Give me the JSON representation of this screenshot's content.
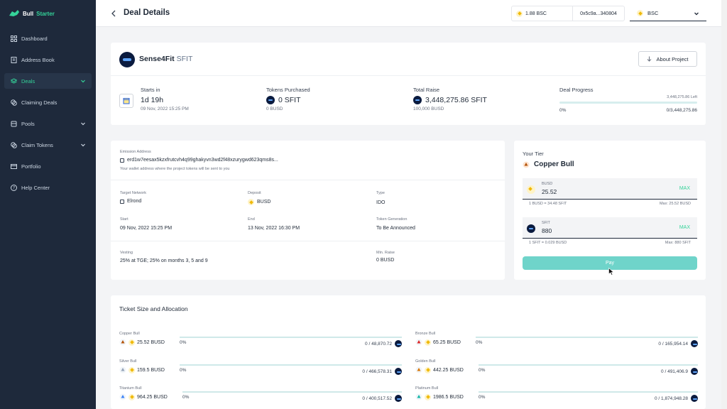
{
  "app": {
    "name_prefix": "Bull",
    "name_accent": "Starter"
  },
  "sidebar": {
    "items": [
      {
        "label": "Dashboard",
        "icon": "grid-icon"
      },
      {
        "label": "Address Book",
        "icon": "book-icon"
      },
      {
        "label": "Deals",
        "icon": "layers-icon",
        "active": true,
        "chevron": true
      },
      {
        "label": "Claiming Deals",
        "icon": "coins-icon"
      },
      {
        "label": "Pools",
        "icon": "cube-icon",
        "chevron": true
      },
      {
        "label": "Claim Tokens",
        "icon": "coins-icon",
        "chevron": true
      },
      {
        "label": "Portfolio",
        "icon": "wallet-icon"
      },
      {
        "label": "Help Center",
        "icon": "help-icon"
      }
    ]
  },
  "header": {
    "title": "Deal Details",
    "balance": "1.88 BSC",
    "address": "0x5c9a...340804",
    "network": "BSC"
  },
  "project": {
    "name": "Sense4Fit",
    "symbol": "SFIT",
    "about_label": "About Project",
    "starts_in_label": "Starts in",
    "starts_in_value": "1d 19h",
    "starts_in_date": "09 Nov, 2022 15:25 PM",
    "tokens_purchased_label": "Tokens Purchased",
    "tokens_purchased_value": "0 SFIT",
    "tokens_purchased_sub": "0 BUSD",
    "total_raise_label": "Total Raise",
    "total_raise_value": "3,448,275.86 SFIT",
    "total_raise_sub": "100,000 BUSD",
    "progress_label": "Deal Progress",
    "progress_left": "3,448,275.86 Left",
    "progress_pct": "0%",
    "progress_ratio": "0/3,448,275.86",
    "progress_fraction": 0
  },
  "info": {
    "emission_label": "Emission Address",
    "emission_value": "erd1w7eesax5kzxfrutcvh4q99ghakyvn3wd2f48xzurygwd623qms8s...",
    "emission_note": "Your wallet address where the project tokens will be sent to you",
    "target_network_label": "Target Network",
    "target_network_value": "Elrond",
    "deposit_label": "Deposit",
    "deposit_value": "BUSD",
    "type_label": "Type",
    "type_value": "IDO",
    "start_label": "Start",
    "start_value": "09 Nov, 2022 15:25 PM",
    "end_label": "End",
    "end_value": "13 Nov, 2022 16:30 PM",
    "token_gen_label": "Token Generation",
    "token_gen_value": "To Be Announced",
    "vesting_label": "Vesting",
    "vesting_value": "25% at TGE; 25% on months 3, 5 and 9",
    "min_raise_label": "Min. Raise",
    "min_raise_value": "0 BUSD"
  },
  "tier": {
    "label": "Your Tier",
    "name": "Copper Bull",
    "busd_label": "BUSD",
    "busd_value": "25.52",
    "max_label": "MAX",
    "busd_rate": "1 BUSD = 34.48 SFIT",
    "busd_max": "Max: 25.52 BUSD",
    "sfit_label": "SFIT",
    "sfit_value": "880",
    "sfit_rate": "1 SFIT = 0.029 BUSD",
    "sfit_max": "Max: 880 SFIT",
    "pay_label": "Pay"
  },
  "tickets": {
    "title": "Ticket Size and Allocation",
    "items": [
      {
        "name": "Copper Bull",
        "amount": "25.52 BUSD",
        "pct": "0%",
        "cap": "0 / 48,870.72",
        "color": "#b45309"
      },
      {
        "name": "Bronze Bull",
        "amount": "65.25 BUSD",
        "pct": "0%",
        "cap": "0 / 165,954.14",
        "color": "#dc2626"
      },
      {
        "name": "Silver Bull",
        "amount": "159.5 BUSD",
        "pct": "0%",
        "cap": "0 / 466,578.31",
        "color": "#94a3b8"
      },
      {
        "name": "Golden Bull",
        "amount": "442.25 BUSD",
        "pct": "0%",
        "cap": "0 / 491,406.9",
        "color": "#d97706"
      },
      {
        "name": "Titanium Bull",
        "amount": "964.25 BUSD",
        "pct": "0%",
        "cap": "0 / 400,517.52",
        "color": "#3b82f6"
      },
      {
        "name": "Platinum Bull",
        "amount": "1986.5 BUSD",
        "pct": "0%",
        "cap": "0 / 1,874,948.28",
        "color": "#14b8a6"
      }
    ]
  }
}
